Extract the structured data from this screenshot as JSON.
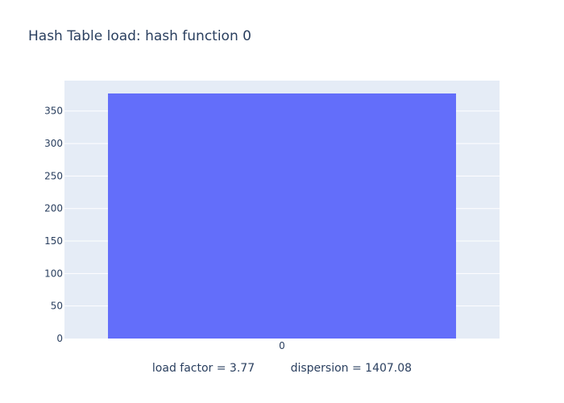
{
  "chart_data": {
    "type": "bar",
    "title": "Hash Table load: hash function 0",
    "xlabel": "load factor = 3.77          dispersion = 1407.08",
    "ylabel": "",
    "categories": [
      "0"
    ],
    "values": [
      377
    ],
    "ylim": [
      0,
      396.8
    ],
    "yticks": [
      "0",
      "50",
      "100",
      "150",
      "200",
      "250",
      "300",
      "350"
    ],
    "grid": true,
    "legend": "none",
    "colors": {
      "bar": "#636efa",
      "plot_bg": "#e5ecf6",
      "grid": "#ffffff",
      "text": "#2a3f5f"
    }
  }
}
